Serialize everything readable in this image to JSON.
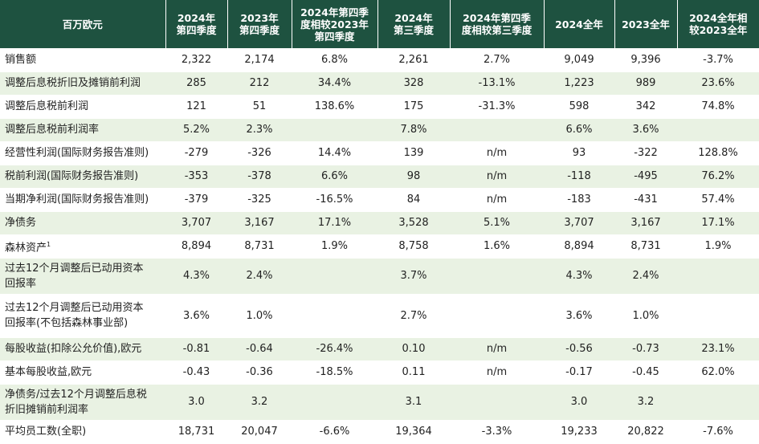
{
  "headers": [
    "百万欧元",
    "2024年\n第四季度",
    "2023年\n第四季度",
    "2024年第四季\n度相较2023年\n第四季度",
    "2024年\n第三季度",
    "2024年第四季\n度相较第三季度",
    "2024全年",
    "2023全年",
    "2024全年相\n较2023全年"
  ],
  "rows": [
    {
      "label": "销售额",
      "values": [
        "2,322",
        "2,174",
        "6.8%",
        "2,261",
        "2.7%",
        "9,049",
        "9,396",
        "-3.7%"
      ]
    },
    {
      "label": "调整后息税折旧及摊销前利润",
      "values": [
        "285",
        "212",
        "34.4%",
        "328",
        "-13.1%",
        "1,223",
        "989",
        "23.6%"
      ]
    },
    {
      "label": "调整后息税前利润",
      "values": [
        "121",
        "51",
        "138.6%",
        "175",
        "-31.3%",
        "598",
        "342",
        "74.8%"
      ]
    },
    {
      "label": "调整后息税前利润率",
      "values": [
        "5.2%",
        "2.3%",
        "",
        "7.8%",
        "",
        "6.6%",
        "3.6%",
        ""
      ]
    },
    {
      "label": "经营性利润(国际财务报告准则)",
      "values": [
        "-279",
        "-326",
        "14.4%",
        "139",
        "n/m",
        "93",
        "-322",
        "128.8%"
      ]
    },
    {
      "label": "税前利润(国际财务报告准则)",
      "values": [
        "-353",
        "-378",
        "6.6%",
        "98",
        "n/m",
        "-118",
        "-495",
        "76.2%"
      ]
    },
    {
      "label": "当期净利润(国际财务报告准则)",
      "values": [
        "-379",
        "-325",
        "-16.5%",
        "84",
        "n/m",
        "-183",
        "-431",
        "57.4%"
      ]
    },
    {
      "label": "净债务",
      "values": [
        "3,707",
        "3,167",
        "17.1%",
        "3,528",
        "5.1%",
        "3,707",
        "3,167",
        "17.1%"
      ]
    },
    {
      "label": "森林资产",
      "footnote": "1",
      "values": [
        "8,894",
        "8,731",
        "1.9%",
        "8,758",
        "1.6%",
        "8,894",
        "8,731",
        "1.9%"
      ]
    },
    {
      "label": "过去12个月调整后已动用资本\n回报率",
      "values": [
        "4.3%",
        "2.4%",
        "",
        "3.7%",
        "",
        "4.3%",
        "2.4%",
        ""
      ]
    },
    {
      "label": "过去12个月调整后已动用资本\n回报率(不包括森林事业部)",
      "values": [
        "3.6%",
        "1.0%",
        "",
        "2.7%",
        "",
        "3.6%",
        "1.0%",
        ""
      ]
    },
    {
      "label": "每股收益(扣除公允价值),欧元",
      "values": [
        "-0.81",
        "-0.64",
        "-26.4%",
        "0.10",
        "n/m",
        "-0.56",
        "-0.73",
        "23.1%"
      ]
    },
    {
      "label": "基本每股收益,欧元",
      "values": [
        "-0.43",
        "-0.36",
        "-18.5%",
        "0.11",
        "n/m",
        "-0.17",
        "-0.45",
        "62.0%"
      ]
    },
    {
      "label": "净债务/过去12个月调整后息税\n折旧摊销前利润率",
      "values": [
        "3.0",
        "3.2",
        "",
        "3.1",
        "",
        "3.0",
        "3.2",
        ""
      ]
    },
    {
      "label": "平均员工数(全职)",
      "values": [
        "18,731",
        "20,047",
        "-6.6%",
        "19,364",
        "-3.3%",
        "19,233",
        "20,822",
        "-7.6%"
      ]
    }
  ]
}
